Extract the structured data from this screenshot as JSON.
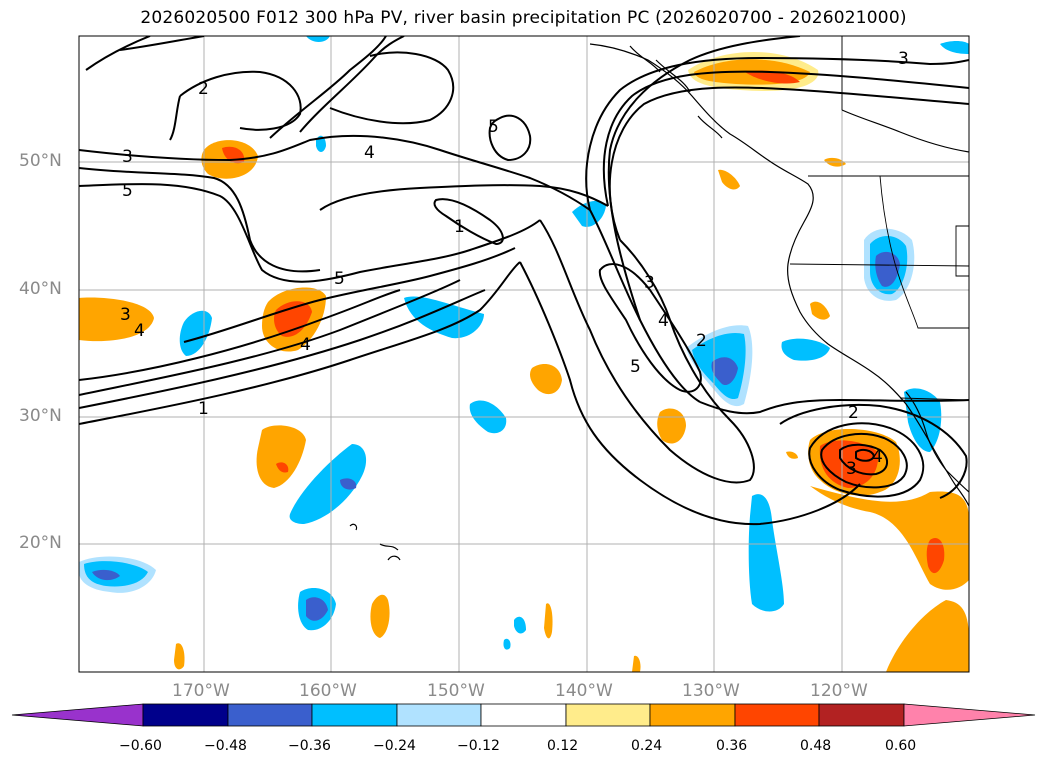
{
  "title": "2026020500 F012 300 hPa PV, river basin precipitation PC (2026020700 - 2026021000)",
  "lat_labels": [
    "50°N",
    "40°N",
    "30°N",
    "20°N"
  ],
  "lon_labels": [
    "170°W",
    "160°W",
    "150°W",
    "140°W",
    "130°W",
    "120°W"
  ],
  "contour_labels": [
    "1",
    "2",
    "3",
    "4",
    "5"
  ],
  "colorbar": {
    "ticks": [
      "−0.60",
      "−0.48",
      "−0.36",
      "−0.24",
      "−0.12",
      "0.12",
      "0.24",
      "0.36",
      "0.48",
      "0.60"
    ],
    "colors": [
      "#9932cc",
      "#00008b",
      "#3a5fcd",
      "#00bfff",
      "#b0e2ff",
      "#ffffff",
      "#ffec8b",
      "#ffa500",
      "#ff4500",
      "#b22222",
      "#ff82ab"
    ]
  }
}
